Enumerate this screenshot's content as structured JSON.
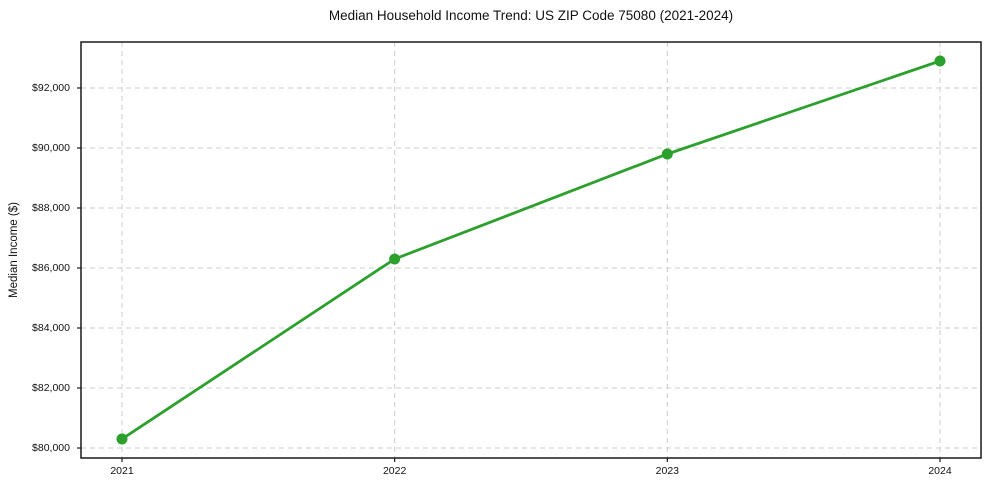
{
  "figure": {
    "background": "#ffffff"
  },
  "chart_data": {
    "type": "line",
    "title": "Median Household Income Trend: US ZIP Code 75080 (2021-2024)",
    "xlabel": "",
    "ylabel": "Median Income ($)",
    "categories": [
      "2021",
      "2022",
      "2023",
      "2024"
    ],
    "values": [
      80300,
      86300,
      89800,
      92900
    ],
    "line_color": "#2ca02c",
    "marker_color": "#2ca02c",
    "marker_radius": 5.5,
    "line_width": 2.8,
    "y_ticks": [
      {
        "value": 80000,
        "label": "$80,000"
      },
      {
        "value": 82000,
        "label": "$82,000"
      },
      {
        "value": 84000,
        "label": "$84,000"
      },
      {
        "value": 86000,
        "label": "$86,000"
      },
      {
        "value": 88000,
        "label": "$88,000"
      },
      {
        "value": 90000,
        "label": "$90,000"
      },
      {
        "value": 92000,
        "label": "$92,000"
      }
    ],
    "ylim": [
      79667,
      93533
    ],
    "grid": "dashed",
    "grid_color": "#cccccc",
    "spine_color": "#1a1a1a",
    "legend": "none"
  }
}
